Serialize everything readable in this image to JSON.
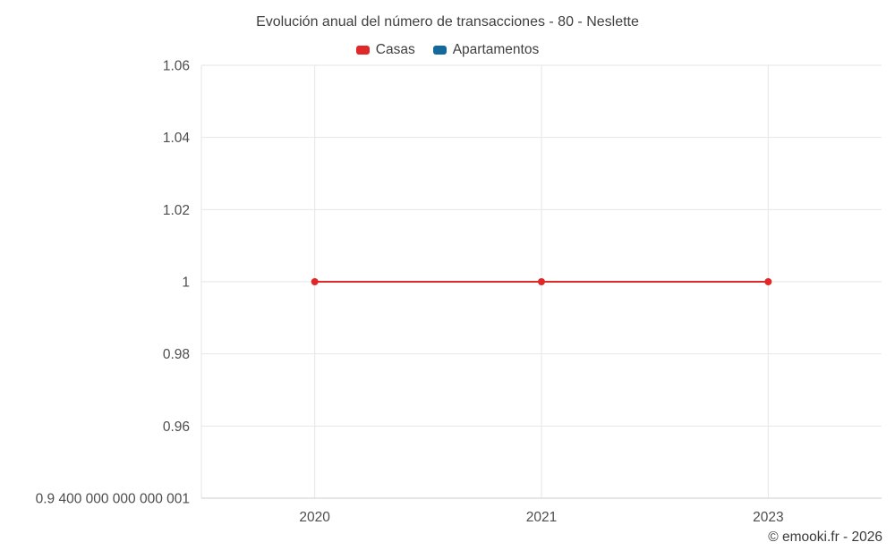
{
  "title": "Evolución anual del número de transacciones - 80 - Neslette",
  "legend": [
    {
      "label": "Casas",
      "color": "#e02828"
    },
    {
      "label": "Apartamentos",
      "color": "#14699c"
    }
  ],
  "footer": "© emooki.fr - 2026",
  "chart_data": {
    "type": "line",
    "title": "Evolución anual del número de transacciones - 80 - Neslette",
    "categories": [
      "2020",
      "2021",
      "2023"
    ],
    "series": [
      {
        "name": "Casas",
        "color": "#e02828",
        "values": [
          1,
          1,
          1
        ]
      },
      {
        "name": "Apartamentos",
        "color": "#14699c",
        "values": []
      }
    ],
    "xlabel": "",
    "ylabel": "",
    "ylim": [
      0.94,
      1.06
    ],
    "yticks": [
      1.06,
      1.04,
      1.02,
      1,
      0.98,
      0.96,
      0.94
    ],
    "ytick_labels": [
      "1.06",
      "1.04",
      "1.02",
      "1",
      "0.98",
      "0.96",
      "0.9 400 000 000 000 001"
    ],
    "grid": true,
    "legend_position": "top",
    "colors": {
      "grid": "#e6e6e6",
      "axis": "#cccccc",
      "tick": "#4d4d4d"
    }
  }
}
